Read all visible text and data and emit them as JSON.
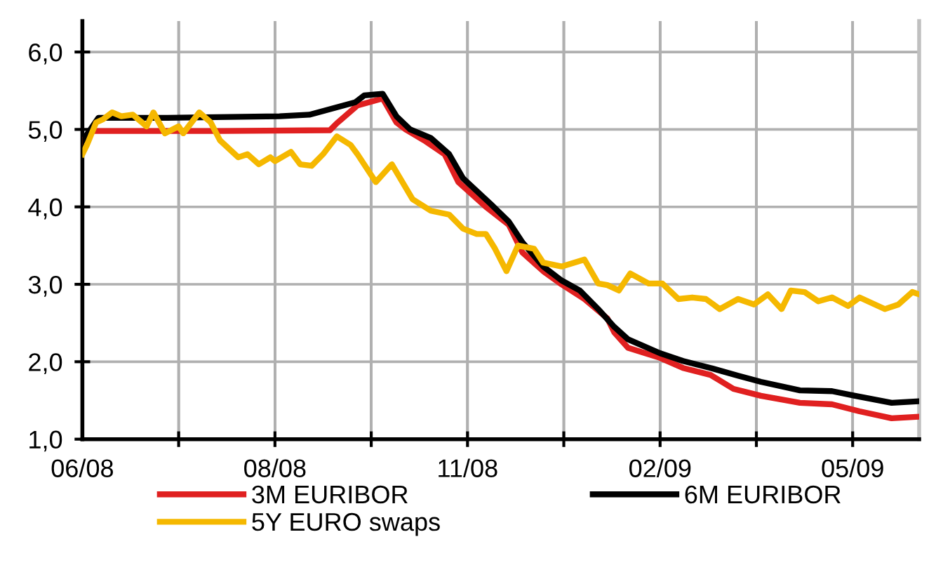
{
  "chart_data": {
    "type": "line",
    "xlim": [
      "2008-06-02",
      "2009-06-02"
    ],
    "ylim": [
      1,
      6.4
    ],
    "xticks": [
      {
        "value": "2008-06-02",
        "label": "06/08"
      },
      {
        "value": "2008-07-14",
        "label": null
      },
      {
        "value": "2008-08-25",
        "label": "08/08"
      },
      {
        "value": "2008-10-06",
        "label": null
      },
      {
        "value": "2008-11-17",
        "label": "11/08"
      },
      {
        "value": "2008-12-29",
        "label": null
      },
      {
        "value": "2009-02-09",
        "label": "02/09"
      },
      {
        "value": "2009-03-23",
        "label": null
      },
      {
        "value": "2009-05-04",
        "label": "05/09"
      }
    ],
    "yticks": [
      {
        "value": 1,
        "label": "1,0"
      },
      {
        "value": 2,
        "label": "2,0"
      },
      {
        "value": 3,
        "label": "3,0"
      },
      {
        "value": 4,
        "label": "4,0"
      },
      {
        "value": 5,
        "label": "5,0"
      },
      {
        "value": 6,
        "label": "6,0"
      }
    ],
    "grid": true,
    "legend": "bottom",
    "marker": "none",
    "line_style": "solid",
    "series": [
      {
        "name": "3M EURIBOR",
        "color": "#e02020",
        "x": [
          "2008-06-02",
          "2008-06-06",
          "2008-06-26",
          "2008-08-02",
          "2008-09-18",
          "2008-09-21",
          "2008-09-30",
          "2008-10-11",
          "2008-10-17",
          "2008-10-21",
          "2008-10-29",
          "2008-11-07",
          "2008-11-13",
          "2008-11-25",
          "2008-12-05",
          "2008-12-11",
          "2008-12-20",
          "2008-12-28",
          "2009-01-07",
          "2009-01-17",
          "2009-01-20",
          "2009-01-26",
          "2009-02-09",
          "2009-02-19",
          "2009-03-03",
          "2009-03-13",
          "2009-03-25",
          "2009-04-11",
          "2009-04-25",
          "2009-05-07",
          "2009-05-21",
          "2009-06-02"
        ],
        "values": [
          4.85,
          4.98,
          4.98,
          4.98,
          4.99,
          5.08,
          5.31,
          5.4,
          5.09,
          5.0,
          4.86,
          4.68,
          4.32,
          4.0,
          3.77,
          3.41,
          3.17,
          3.0,
          2.81,
          2.56,
          2.38,
          2.18,
          2.05,
          1.92,
          1.83,
          1.65,
          1.56,
          1.47,
          1.45,
          1.36,
          1.27,
          1.29
        ]
      },
      {
        "name": "6M EURIBOR",
        "color": "#000000",
        "x": [
          "2008-06-02",
          "2008-06-09",
          "2008-07-09",
          "2008-08-27",
          "2008-09-09",
          "2008-09-29",
          "2008-10-03",
          "2008-10-11",
          "2008-10-17",
          "2008-10-23",
          "2008-11-01",
          "2008-11-09",
          "2008-11-15",
          "2008-11-27",
          "2008-12-05",
          "2008-12-11",
          "2008-12-20",
          "2008-12-28",
          "2009-01-05",
          "2009-01-13",
          "2009-01-20",
          "2009-01-26",
          "2009-02-09",
          "2009-02-19",
          "2009-03-03",
          "2009-03-15",
          "2009-03-25",
          "2009-04-11",
          "2009-04-25",
          "2009-05-05",
          "2009-05-21",
          "2009-06-02"
        ],
        "values": [
          4.85,
          5.15,
          5.15,
          5.17,
          5.19,
          5.35,
          5.44,
          5.46,
          5.17,
          5.0,
          4.89,
          4.68,
          4.37,
          4.04,
          3.81,
          3.54,
          3.23,
          3.05,
          2.92,
          2.68,
          2.45,
          2.29,
          2.11,
          2.01,
          1.92,
          1.82,
          1.74,
          1.63,
          1.62,
          1.56,
          1.47,
          1.49
        ]
      },
      {
        "name": "5Y EURO swaps",
        "color": "#f5b800",
        "x": [
          "2008-06-02",
          "2008-06-04",
          "2008-06-08",
          "2008-06-11",
          "2008-06-15",
          "2008-06-19",
          "2008-06-24",
          "2008-06-30",
          "2008-07-03",
          "2008-07-08",
          "2008-07-14",
          "2008-07-16",
          "2008-07-23",
          "2008-07-28",
          "2008-08-01",
          "2008-08-09",
          "2008-08-13",
          "2008-08-18",
          "2008-08-23",
          "2008-08-25",
          "2008-09-01",
          "2008-09-05",
          "2008-09-10",
          "2008-09-15",
          "2008-09-21",
          "2008-09-27",
          "2008-09-30",
          "2008-10-08",
          "2008-10-15",
          "2008-10-24",
          "2008-11-01",
          "2008-11-09",
          "2008-11-15",
          "2008-11-21",
          "2008-11-25",
          "2008-11-29",
          "2008-12-04",
          "2008-12-09",
          "2008-12-16",
          "2008-12-20",
          "2008-12-28",
          "2009-01-07",
          "2009-01-13",
          "2009-01-17",
          "2009-01-22",
          "2009-01-27",
          "2009-02-04",
          "2009-02-10",
          "2009-02-17",
          "2009-02-23",
          "2009-03-01",
          "2009-03-07",
          "2009-03-15",
          "2009-03-22",
          "2009-03-28",
          "2009-04-03",
          "2009-04-07",
          "2009-04-13",
          "2009-04-19",
          "2009-04-25",
          "2009-05-02",
          "2009-05-07",
          "2009-05-18",
          "2009-05-24",
          "2009-05-30",
          "2009-06-02"
        ],
        "values": [
          4.68,
          4.8,
          5.09,
          5.13,
          5.22,
          5.17,
          5.19,
          5.04,
          5.22,
          4.95,
          5.04,
          4.95,
          5.22,
          5.09,
          4.86,
          4.64,
          4.68,
          4.55,
          4.64,
          4.59,
          4.71,
          4.55,
          4.53,
          4.68,
          4.91,
          4.8,
          4.68,
          4.32,
          4.55,
          4.1,
          3.95,
          3.9,
          3.72,
          3.65,
          3.65,
          3.46,
          3.17,
          3.5,
          3.46,
          3.28,
          3.23,
          3.32,
          3.01,
          2.99,
          2.92,
          3.14,
          3.01,
          3.01,
          2.81,
          2.83,
          2.81,
          2.68,
          2.81,
          2.74,
          2.87,
          2.68,
          2.92,
          2.9,
          2.78,
          2.83,
          2.72,
          2.83,
          2.68,
          2.74,
          2.9,
          2.87
        ]
      }
    ]
  }
}
